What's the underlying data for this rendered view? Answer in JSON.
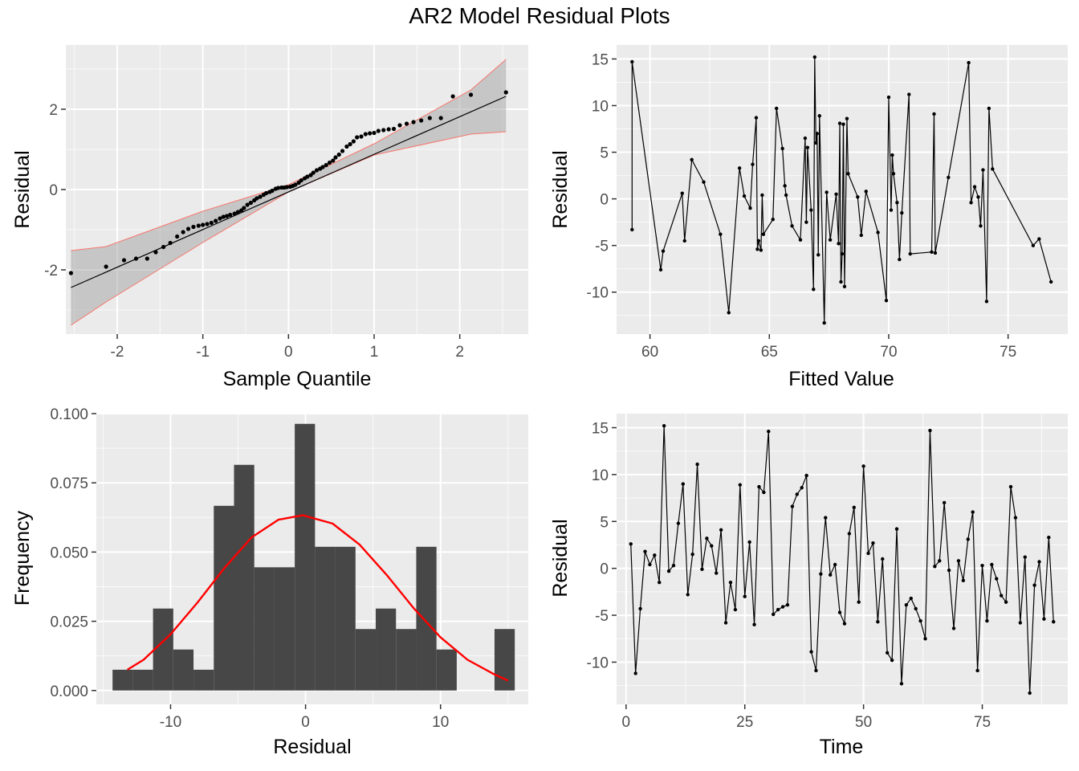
{
  "title": "AR2 Model Residual Plots",
  "chart_data": [
    {
      "type": "scatter",
      "subtype": "qq-plot",
      "panel": "top-left",
      "xlabel": "Sample Quantile",
      "ylabel": "Residual",
      "xlim": [
        -2.6,
        2.8
      ],
      "ylim": [
        -3.6,
        3.6
      ],
      "xticks": [
        -2,
        -1,
        0,
        1,
        2
      ],
      "yticks": [
        -2,
        0,
        2
      ],
      "grid": true,
      "point_color": "#000000",
      "line_color": "#000000",
      "band_color": "#999999",
      "band_edge_color": "#f8766d",
      "points": {
        "x": [
          -2.54,
          -2.13,
          -1.92,
          -1.78,
          -1.65,
          -1.55,
          -1.46,
          -1.38,
          -1.3,
          -1.23,
          -1.17,
          -1.11,
          -1.05,
          -1.0,
          -0.95,
          -0.9,
          -0.85,
          -0.8,
          -0.76,
          -0.72,
          -0.68,
          -0.63,
          -0.59,
          -0.55,
          -0.52,
          -0.48,
          -0.44,
          -0.4,
          -0.37,
          -0.33,
          -0.29,
          -0.26,
          -0.22,
          -0.19,
          -0.15,
          -0.12,
          -0.08,
          -0.05,
          -0.02,
          0.02,
          0.05,
          0.08,
          0.12,
          0.15,
          0.19,
          0.22,
          0.26,
          0.29,
          0.33,
          0.37,
          0.4,
          0.44,
          0.48,
          0.52,
          0.55,
          0.59,
          0.63,
          0.68,
          0.72,
          0.76,
          0.8,
          0.85,
          0.9,
          0.95,
          1.0,
          1.05,
          1.11,
          1.17,
          1.23,
          1.3,
          1.38,
          1.46,
          1.55,
          1.65,
          1.78,
          1.92,
          2.13,
          2.54
        ],
        "y": [
          -2.08,
          -1.92,
          -1.76,
          -1.72,
          -1.72,
          -1.56,
          -1.43,
          -1.33,
          -1.17,
          -1.06,
          -0.98,
          -0.93,
          -0.9,
          -0.88,
          -0.86,
          -0.83,
          -0.78,
          -0.72,
          -0.68,
          -0.66,
          -0.63,
          -0.6,
          -0.56,
          -0.52,
          -0.46,
          -0.38,
          -0.33,
          -0.27,
          -0.22,
          -0.18,
          -0.13,
          -0.09,
          -0.06,
          -0.03,
          0.02,
          0.04,
          0.05,
          0.05,
          0.06,
          0.07,
          0.09,
          0.12,
          0.17,
          0.23,
          0.28,
          0.32,
          0.36,
          0.42,
          0.48,
          0.52,
          0.56,
          0.61,
          0.67,
          0.72,
          0.8,
          0.87,
          0.96,
          1.07,
          1.13,
          1.2,
          1.3,
          1.32,
          1.38,
          1.4,
          1.41,
          1.46,
          1.48,
          1.5,
          1.51,
          1.6,
          1.64,
          1.68,
          1.72,
          1.78,
          1.78,
          2.32,
          2.36,
          2.42
        ]
      },
      "reference_line": {
        "x": [
          -2.54,
          2.54
        ],
        "y": [
          -2.44,
          2.32
        ]
      },
      "confidence_band": {
        "x": [
          -2.54,
          -2.13,
          -1.0,
          0.0,
          1.0,
          2.13,
          2.54
        ],
        "lower": [
          -3.38,
          -2.8,
          -1.32,
          -0.06,
          0.86,
          1.38,
          1.44
        ],
        "upper": [
          -1.52,
          -1.42,
          -0.54,
          0.12,
          1.14,
          2.48,
          3.24
        ]
      }
    },
    {
      "type": "line",
      "panel": "top-right",
      "xlabel": "Fitted Value",
      "ylabel": "Residual",
      "xlim": [
        58.6,
        77.5
      ],
      "ylim": [
        -14.5,
        16.5
      ],
      "xticks": [
        60,
        65,
        70,
        75
      ],
      "yticks": [
        -10,
        -5,
        0,
        5,
        10,
        15
      ],
      "grid": true,
      "line_color": "#000000",
      "x": [
        59.25,
        59.25,
        60.45,
        60.55,
        61.35,
        61.45,
        61.75,
        62.25,
        62.95,
        63.3,
        63.75,
        63.95,
        64.2,
        64.3,
        64.45,
        64.5,
        64.55,
        64.65,
        64.7,
        64.75,
        65.15,
        65.3,
        65.55,
        65.65,
        65.7,
        65.95,
        66.3,
        66.5,
        66.55,
        66.6,
        66.75,
        66.85,
        66.9,
        66.95,
        67.0,
        67.05,
        67.1,
        67.3,
        67.4,
        67.55,
        67.8,
        67.9,
        67.95,
        68.0,
        68.05,
        68.1,
        68.15,
        68.25,
        68.3,
        68.7,
        68.85,
        69.05,
        69.55,
        69.9,
        70.0,
        70.1,
        70.15,
        70.2,
        70.35,
        70.45,
        70.55,
        70.85,
        70.9,
        71.8,
        71.9,
        71.95,
        72.5,
        73.35,
        73.45,
        73.6,
        73.75,
        73.85,
        73.95,
        74.1,
        74.2,
        74.35,
        76.05,
        76.3,
        76.8
      ],
      "y": [
        -3.3,
        14.7,
        -7.6,
        -5.6,
        0.6,
        -4.5,
        4.2,
        1.8,
        -3.8,
        -12.2,
        3.3,
        0.3,
        -1.0,
        3.7,
        8.7,
        -5.4,
        -4.5,
        -5.5,
        0.4,
        -3.8,
        -2.2,
        9.7,
        5.4,
        1.4,
        0.4,
        -2.9,
        -4.4,
        6.5,
        -2.5,
        5.5,
        -1.2,
        -9.7,
        15.2,
        6.0,
        7.0,
        -6.0,
        8.9,
        -13.3,
        0.7,
        -4.4,
        0.5,
        -4.8,
        8.1,
        -8.9,
        -5.9,
        8.0,
        -9.4,
        8.6,
        2.7,
        0.2,
        -3.9,
        0.8,
        -3.6,
        -10.9,
        10.9,
        -1.2,
        4.7,
        2.7,
        -0.4,
        -6.5,
        -1.5,
        11.2,
        -5.9,
        -5.7,
        9.1,
        -5.8,
        2.3,
        14.6,
        -0.4,
        1.3,
        0.2,
        -2.9,
        3.1,
        -11.0,
        9.7,
        3.2,
        -5.0,
        -4.3,
        -8.9
      ]
    },
    {
      "type": "bar",
      "subtype": "histogram",
      "panel": "bottom-left",
      "xlabel": "Residual",
      "ylabel": "Frequency",
      "xlim": [
        -15.5,
        16.5
      ],
      "ylim": [
        -0.005,
        0.1
      ],
      "xticks": [
        -10,
        0,
        10
      ],
      "yticks": [
        0,
        0.025,
        0.05,
        0.075,
        0.1
      ],
      "ytick_labels": [
        "0.000",
        "0.025",
        "0.050",
        "0.075",
        "0.100"
      ],
      "grid": true,
      "bar_color": "#474747",
      "curve_color": "#ff0000",
      "bins": [
        {
          "x0": -14.3,
          "x1": -12.8,
          "value": 0.0075
        },
        {
          "x0": -12.8,
          "x1": -11.3,
          "value": 0.0075
        },
        {
          "x0": -11.3,
          "x1": -9.8,
          "value": 0.0296
        },
        {
          "x0": -9.8,
          "x1": -8.3,
          "value": 0.0148
        },
        {
          "x0": -8.3,
          "x1": -6.8,
          "value": 0.0075
        },
        {
          "x0": -6.8,
          "x1": -5.3,
          "value": 0.0667
        },
        {
          "x0": -5.3,
          "x1": -3.8,
          "value": 0.0815
        },
        {
          "x0": -3.8,
          "x1": -2.3,
          "value": 0.0445
        },
        {
          "x0": -2.3,
          "x1": -0.8,
          "value": 0.0445
        },
        {
          "x0": -0.8,
          "x1": 0.7,
          "value": 0.0963
        },
        {
          "x0": 0.7,
          "x1": 2.2,
          "value": 0.0519
        },
        {
          "x0": 2.2,
          "x1": 3.7,
          "value": 0.0519
        },
        {
          "x0": 3.7,
          "x1": 5.2,
          "value": 0.0222
        },
        {
          "x0": 5.2,
          "x1": 6.7,
          "value": 0.0296
        },
        {
          "x0": 6.7,
          "x1": 8.2,
          "value": 0.0222
        },
        {
          "x0": 8.2,
          "x1": 9.7,
          "value": 0.0519
        },
        {
          "x0": 9.7,
          "x1": 11.2,
          "value": 0.0148
        },
        {
          "x0": 14.0,
          "x1": 15.5,
          "value": 0.0222
        }
      ],
      "density_curve": {
        "x": [
          -13.2,
          -12,
          -10,
          -8,
          -6,
          -4,
          -2,
          -0.2,
          2,
          4,
          6,
          8,
          10,
          12,
          14,
          15.0
        ],
        "y": [
          0.0075,
          0.0111,
          0.0203,
          0.0318,
          0.0443,
          0.0553,
          0.0617,
          0.0633,
          0.0603,
          0.0527,
          0.0418,
          0.0298,
          0.0192,
          0.0111,
          0.0058,
          0.0036
        ]
      }
    },
    {
      "type": "line",
      "panel": "bottom-right",
      "xlabel": "Time",
      "ylabel": "Residual",
      "xlim": [
        -2,
        93
      ],
      "ylim": [
        -14.5,
        16.5
      ],
      "xticks": [
        0,
        25,
        50,
        75
      ],
      "yticks": [
        -10,
        -5,
        0,
        5,
        10,
        15
      ],
      "grid": true,
      "line_color": "#000000",
      "x": [
        1,
        2,
        3,
        4,
        5,
        6,
        7,
        8,
        9,
        10,
        11,
        12,
        13,
        14,
        15,
        16,
        17,
        18,
        19,
        20,
        21,
        22,
        23,
        24,
        25,
        26,
        27,
        28,
        29,
        30,
        31,
        32,
        33,
        34,
        35,
        36,
        37,
        38,
        39,
        40,
        41,
        42,
        43,
        44,
        45,
        46,
        47,
        48,
        49,
        50,
        51,
        52,
        53,
        54,
        55,
        56,
        57,
        58,
        59,
        60,
        61,
        62,
        63,
        64,
        65,
        66,
        67,
        68,
        69,
        70,
        71,
        72,
        73,
        74,
        75,
        76,
        77,
        78,
        79,
        80,
        81,
        82,
        83,
        84,
        85,
        86,
        87,
        88,
        89,
        90
      ],
      "y": [
        2.6,
        -11.2,
        -4.3,
        1.8,
        0.4,
        1.4,
        -1.5,
        15.2,
        -0.3,
        0.3,
        4.8,
        9.0,
        -2.8,
        1.5,
        11.1,
        -0.1,
        3.2,
        2.4,
        -0.5,
        4.1,
        -5.8,
        -1.5,
        -4.4,
        8.9,
        -3.0,
        2.8,
        -6.0,
        8.7,
        8.1,
        14.6,
        -4.9,
        -4.4,
        -4.1,
        -3.9,
        6.6,
        7.9,
        8.6,
        9.9,
        -8.9,
        -10.9,
        -0.6,
        5.4,
        -0.7,
        0.4,
        -4.7,
        -5.9,
        3.7,
        6.5,
        -3.6,
        10.9,
        1.6,
        2.7,
        -5.7,
        1.0,
        -9.0,
        -9.8,
        4.2,
        -12.3,
        -3.9,
        -3.2,
        -4.3,
        -5.6,
        -7.5,
        14.7,
        0.2,
        0.8,
        7.0,
        -0.2,
        -6.4,
        0.8,
        -1.3,
        3.1,
        6.0,
        -10.9,
        0.3,
        -5.6,
        0.4,
        -1.1,
        -2.9,
        -3.6,
        8.7,
        5.4,
        -5.8,
        1.2,
        -13.3,
        -1.8,
        0.7,
        -5.4,
        3.3,
        -5.7
      ]
    }
  ]
}
